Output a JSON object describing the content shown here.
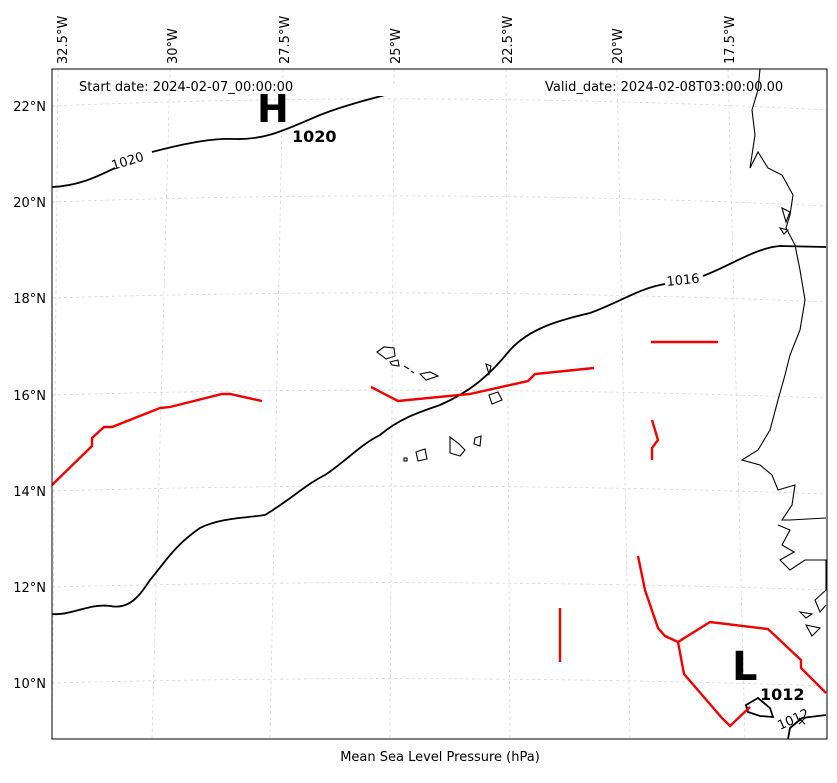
{
  "header": {
    "start_date": "Start date: 2024-02-07_00:00:00",
    "valid_date": "Valid_date: 2024-02-08T03:00:00.00"
  },
  "footer_label": "Mean Sea Level Pressure (hPa)",
  "lon_ticks": [
    "32.5°W",
    "30°W",
    "27.5°W",
    "25°W",
    "22.5°W",
    "20°W",
    "17.5°W"
  ],
  "lat_ticks": [
    "22°N",
    "20°N",
    "18°N",
    "16°N",
    "14°N",
    "12°N",
    "10°N"
  ],
  "isobar_labels": [
    "1020",
    "1016",
    "1012"
  ],
  "centers": [
    {
      "symbol": "H",
      "value": "1020"
    },
    {
      "symbol": "L",
      "value": "1012"
    }
  ],
  "colors": {
    "isobar": "#000000",
    "front": "#ee0000",
    "grid": "#cccccc",
    "coast": "#000000"
  }
}
